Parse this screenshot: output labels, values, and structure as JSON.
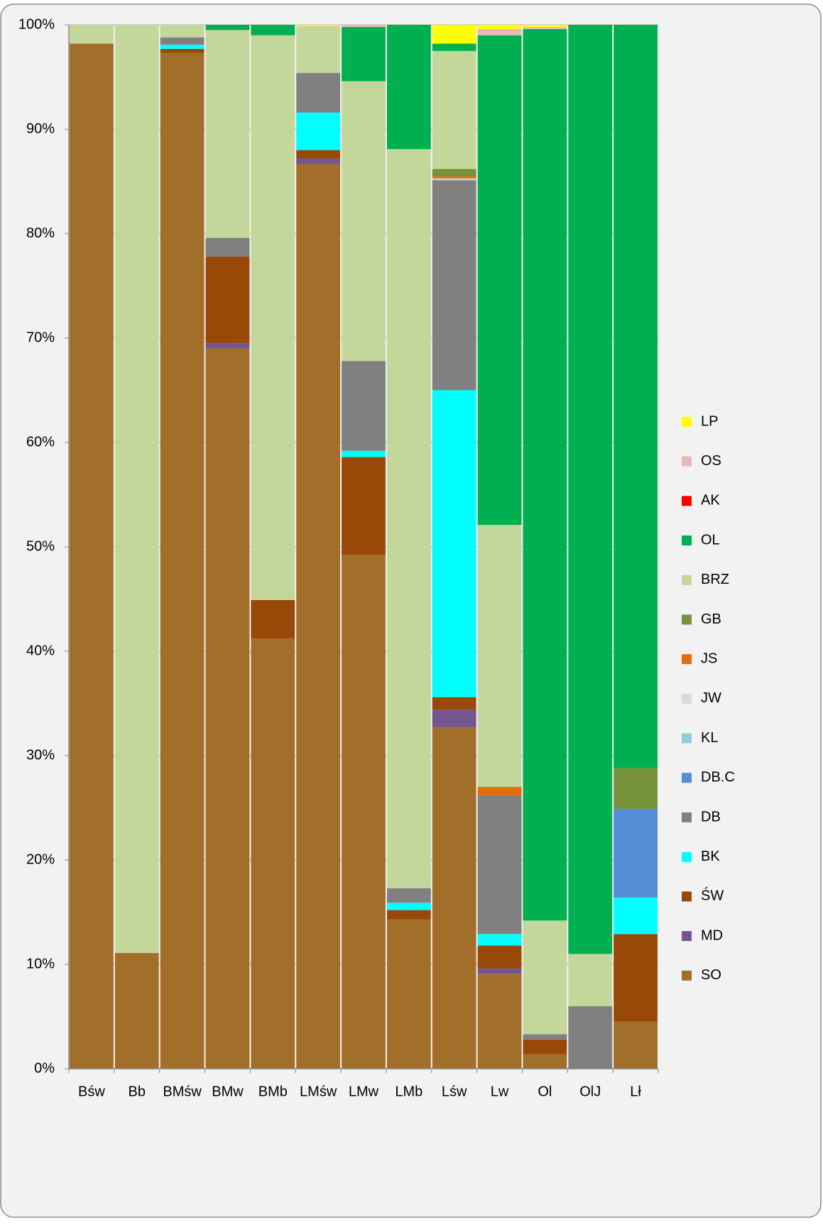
{
  "chart_data": {
    "type": "stacked-bar-100",
    "categories": [
      "Bśw",
      "Bb",
      "BMśw",
      "BMw",
      "BMb",
      "LMśw",
      "LMw",
      "LMb",
      "Lśw",
      "Lw",
      "Ol",
      "OlJ",
      "Lł"
    ],
    "ylim": [
      0,
      100
    ],
    "yticks": [
      {
        "value": 0,
        "label": "0%"
      },
      {
        "value": 10,
        "label": "10%"
      },
      {
        "value": 20,
        "label": "20%"
      },
      {
        "value": 30,
        "label": "30%"
      },
      {
        "value": 40,
        "label": "40%"
      },
      {
        "value": 50,
        "label": "50%"
      },
      {
        "value": 60,
        "label": "60%"
      },
      {
        "value": 70,
        "label": "70%"
      },
      {
        "value": 80,
        "label": "80%"
      },
      {
        "value": 90,
        "label": "90%"
      },
      {
        "value": 100,
        "label": "100%"
      }
    ],
    "grid": true,
    "legend": "right",
    "series": [
      {
        "name": "SO",
        "color": "#a26f2a",
        "values": [
          98.2,
          11.1,
          97.3,
          69.0,
          41.2,
          86.7,
          49.2,
          14.3,
          32.7,
          9.1,
          1.4,
          0,
          4.5
        ]
      },
      {
        "name": "MD",
        "color": "#73558f",
        "values": [
          0,
          0,
          0,
          0.5,
          0,
          0.5,
          0,
          0,
          1.7,
          0.5,
          0,
          0,
          0
        ]
      },
      {
        "name": "ŚW",
        "color": "#984807",
        "values": [
          0,
          0,
          0.4,
          8.3,
          3.7,
          0.8,
          9.4,
          0.9,
          1.2,
          2.2,
          1.4,
          0,
          8.4
        ]
      },
      {
        "name": "BK",
        "color": "#00ffff",
        "values": [
          0,
          0,
          0.4,
          0,
          0,
          3.6,
          0.6,
          0.7,
          29.4,
          1.1,
          0,
          0,
          3.5
        ]
      },
      {
        "name": "DB",
        "color": "#808080",
        "values": [
          0,
          0,
          0.7,
          1.8,
          0,
          3.8,
          8.6,
          1.4,
          20.1,
          13.3,
          0.5,
          6.0,
          0
        ]
      },
      {
        "name": "DB.C",
        "color": "#558ed5",
        "values": [
          0,
          0,
          0,
          0,
          0,
          0,
          0,
          0,
          0,
          0,
          0,
          0,
          8.5
        ]
      },
      {
        "name": "KL",
        "color": "#93cddd",
        "values": [
          0,
          0,
          0,
          0,
          0,
          0,
          0,
          0,
          0.1,
          0,
          0,
          0,
          0
        ]
      },
      {
        "name": "JW",
        "color": "#d9d9d9",
        "values": [
          0,
          0,
          0,
          0,
          0,
          0,
          0,
          0,
          0.1,
          0,
          0,
          0,
          0
        ]
      },
      {
        "name": "JS",
        "color": "#e46c0a",
        "values": [
          0,
          0,
          0,
          0,
          0,
          0,
          0,
          0,
          0.2,
          0.8,
          0,
          0,
          0
        ]
      },
      {
        "name": "GB",
        "color": "#77933c",
        "values": [
          0,
          0,
          0,
          0,
          0,
          0,
          0,
          0,
          0.7,
          0,
          0,
          0,
          3.9
        ]
      },
      {
        "name": "BRZ",
        "color": "#c4d79b",
        "values": [
          1.8,
          88.9,
          1.2,
          19.9,
          54.1,
          4.5,
          26.8,
          70.8,
          11.3,
          25.1,
          10.9,
          5.0,
          0
        ]
      },
      {
        "name": "OL",
        "color": "#00b050",
        "values": [
          0,
          0,
          0,
          0.5,
          1.0,
          0,
          5.2,
          11.9,
          0.7,
          46.9,
          85.4,
          89.0,
          71.2
        ]
      },
      {
        "name": "AK",
        "color": "#ff0000",
        "values": [
          0,
          0,
          0,
          0,
          0,
          0,
          0,
          0,
          0,
          0,
          0,
          0,
          0
        ]
      },
      {
        "name": "OS",
        "color": "#e6b9b8",
        "values": [
          0,
          0,
          0,
          0,
          0,
          0,
          0.2,
          0,
          0,
          0.6,
          0.2,
          0,
          0
        ]
      },
      {
        "name": "LP",
        "color": "#ffff00",
        "values": [
          0,
          0,
          0,
          0,
          0,
          0.1,
          0,
          0,
          1.8,
          0.4,
          0.2,
          0,
          0
        ]
      }
    ]
  }
}
